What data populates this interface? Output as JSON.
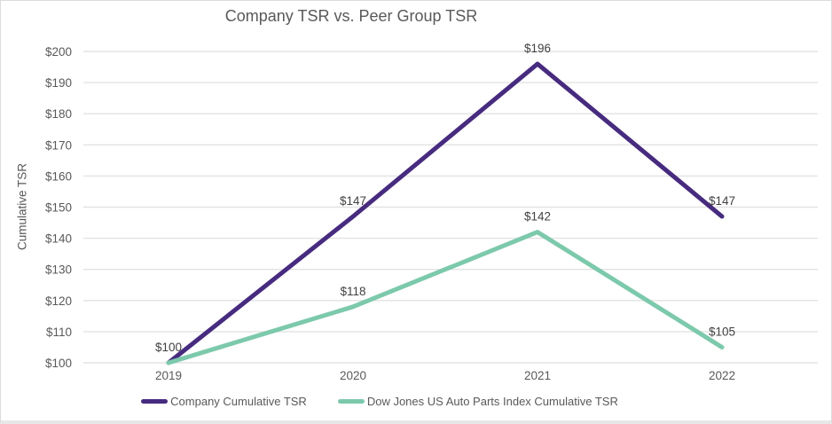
{
  "chart_data": {
    "type": "line",
    "title": "Company TSR vs. Peer Group TSR",
    "xlabel": "",
    "ylabel": "Cumulative TSR",
    "categories": [
      "2019",
      "2020",
      "2021",
      "2022"
    ],
    "series": [
      {
        "name": "Company Cumulative TSR",
        "values": [
          100,
          147,
          196,
          147
        ],
        "labels": [
          "$100",
          "$147",
          "$196",
          "$147"
        ],
        "color": "#472b7f"
      },
      {
        "name": "Dow Jones US Auto Parts Index Cumulative TSR",
        "values": [
          100,
          118,
          142,
          105
        ],
        "labels": [
          "",
          "$118",
          "$142",
          "$105"
        ],
        "color": "#7cc9ac"
      }
    ],
    "ylim": [
      100,
      200
    ],
    "ytick_step": 10,
    "ytick_labels": [
      "$100",
      "$110",
      "$120",
      "$130",
      "$140",
      "$150",
      "$160",
      "$170",
      "$180",
      "$190",
      "$200"
    ],
    "grid": true,
    "legend_position": "bottom",
    "colors": {
      "grid_line": "#e3e3e3",
      "axis_text": "#595959",
      "data_label_text": "#404040",
      "title_text": "#595959"
    }
  }
}
